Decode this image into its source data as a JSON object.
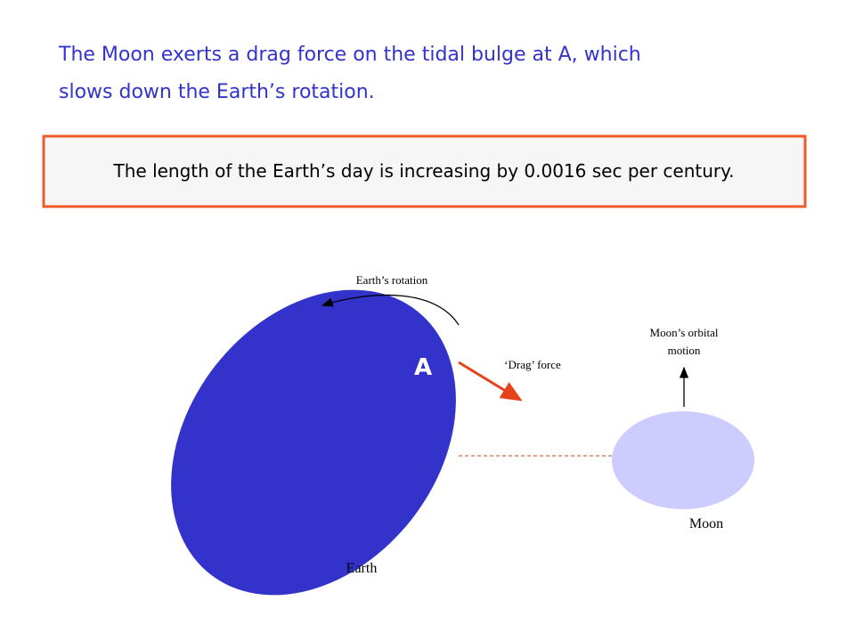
{
  "heading": {
    "lines": [
      "The Moon exerts a drag force on the tidal bulge at A, which",
      "slows down the Earth’s rotation."
    ]
  },
  "callout": {
    "text": "The length of the Earth’s day is increasing by 0.0016 sec per century."
  },
  "diagram": {
    "rotation_label": "Earth’s rotation",
    "point_label": "A",
    "drag_label": "‘Drag’ force",
    "moon_motion_label": [
      "Moon’s orbital",
      "motion"
    ],
    "moon_label": "Moon",
    "earth_label": "Earth"
  }
}
